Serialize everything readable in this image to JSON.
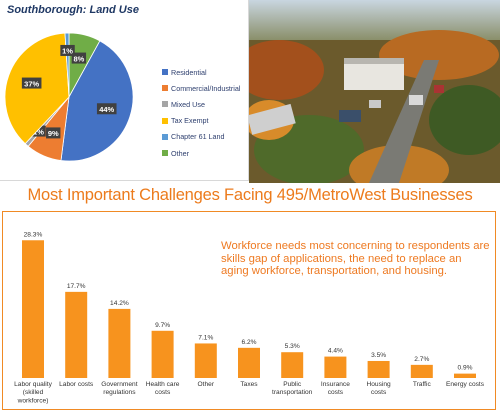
{
  "pie_panel": {
    "title": "Southborough: Land Use"
  },
  "banner": {
    "title": "Most Important Challenges Facing 495/MetroWest Businesses"
  },
  "bar_panel": {
    "callout": "Workforce needs most concerning to respondents are skills gap of applications, the need to replace an aging workforce, transportation, and housing."
  },
  "photo": {
    "description_icon": "aerial-town-photo"
  },
  "chart_data": [
    {
      "type": "pie",
      "title": "Southborough: Land Use",
      "legend_position": "right",
      "slices": [
        {
          "label": "Residential",
          "value": 44,
          "display": "44%",
          "color": "#4472c4"
        },
        {
          "label": "Commercial/Industrial",
          "value": 9,
          "display": "9%",
          "color": "#ed7d31"
        },
        {
          "label": "Mixed Use",
          "value": 1,
          "display": "1%",
          "color": "#a5a5a5"
        },
        {
          "label": "Tax Exempt",
          "value": 37,
          "display": "37%",
          "color": "#ffc000"
        },
        {
          "label": "Chapter 61 Land",
          "value": 1,
          "display": "1%",
          "color": "#5b9bd5"
        },
        {
          "label": "Other",
          "value": 8,
          "display": "8%",
          "color": "#70ad47"
        }
      ]
    },
    {
      "type": "bar",
      "title": "Most Important Challenges Facing 495/MetroWest Businesses",
      "bar_color": "#f7931e",
      "grid": false,
      "ylim": [
        0,
        30
      ],
      "categories": [
        [
          "Labor quality",
          "(skilled",
          "workforce)"
        ],
        [
          "Labor costs"
        ],
        [
          "Government",
          "regulations"
        ],
        [
          "Health care",
          "costs"
        ],
        [
          "Other"
        ],
        [
          "Taxes"
        ],
        [
          "Public",
          "transportation"
        ],
        [
          "Insurance",
          "costs"
        ],
        [
          "Housing",
          "costs"
        ],
        [
          "Traffic"
        ],
        [
          "Energy costs"
        ]
      ],
      "values": [
        28.3,
        17.7,
        14.2,
        9.7,
        7.1,
        6.2,
        5.3,
        4.4,
        3.5,
        2.7,
        0.9
      ],
      "value_labels": [
        "28.3%",
        "17.7%",
        "14.2%",
        "9.7%",
        "7.1%",
        "6.2%",
        "5.3%",
        "4.4%",
        "3.5%",
        "2.7%",
        "0.9%"
      ]
    }
  ]
}
